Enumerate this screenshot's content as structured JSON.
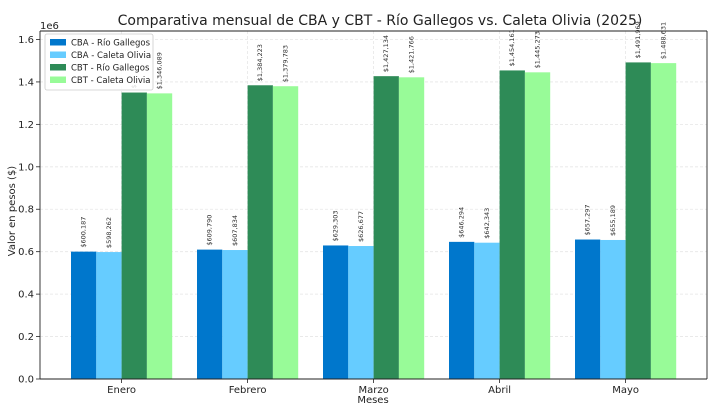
{
  "chart_data": {
    "type": "bar",
    "title": "Comparativa mensual de CBA y CBT - Río Gallegos vs. Caleta Olivia (2025)",
    "xlabel": "Meses",
    "ylabel": "Valor en pesos ($)",
    "y_scale_note": "1e6",
    "ylim": [
      0,
      1640000
    ],
    "yticks": [
      0,
      200000,
      400000,
      600000,
      800000,
      1000000,
      1200000,
      1400000,
      1600000
    ],
    "ytick_labels": [
      "0.0",
      "0.2",
      "0.4",
      "0.6",
      "0.8",
      "1.0",
      "1.2",
      "1.4",
      "1.6"
    ],
    "grid": true,
    "legend_position": "top-left",
    "categories": [
      "Enero",
      "Febrero",
      "Marzo",
      "Abril",
      "Mayo"
    ],
    "series": [
      {
        "name": "CBA - Río Gallegos",
        "color": "#0077cc",
        "values": [
          600187,
          609790,
          629303,
          646294,
          657297
        ],
        "labels": [
          "$600,187",
          "$609,790",
          "$629,303",
          "$646,294",
          "$657,297"
        ]
      },
      {
        "name": "CBA - Caleta Olivia",
        "color": "#66ccff",
        "values": [
          598262,
          607834,
          626677,
          642343,
          655189
        ],
        "labels": [
          "$598,262",
          "$607,834",
          "$626,677",
          "$642,343",
          "$655,189"
        ]
      },
      {
        "name": "CBT - Río Gallegos",
        "color": "#2e8b57",
        "values": [
          1350000,
          1384223,
          1427134,
          1454161,
          1491969
        ],
        "labels": [
          "$",
          "$1,384,223",
          "$1,427,134",
          "$1,454,161",
          "$1,491,969"
        ]
      },
      {
        "name": "CBT - Caleta Olivia",
        "color": "#98fb98",
        "values": [
          1346089,
          1379783,
          1421766,
          1445273,
          1488631
        ],
        "labels": [
          "$1,346,089",
          "$1,379,783",
          "$1,421,766",
          "$1,445,273",
          "$1,488,631"
        ]
      }
    ]
  }
}
